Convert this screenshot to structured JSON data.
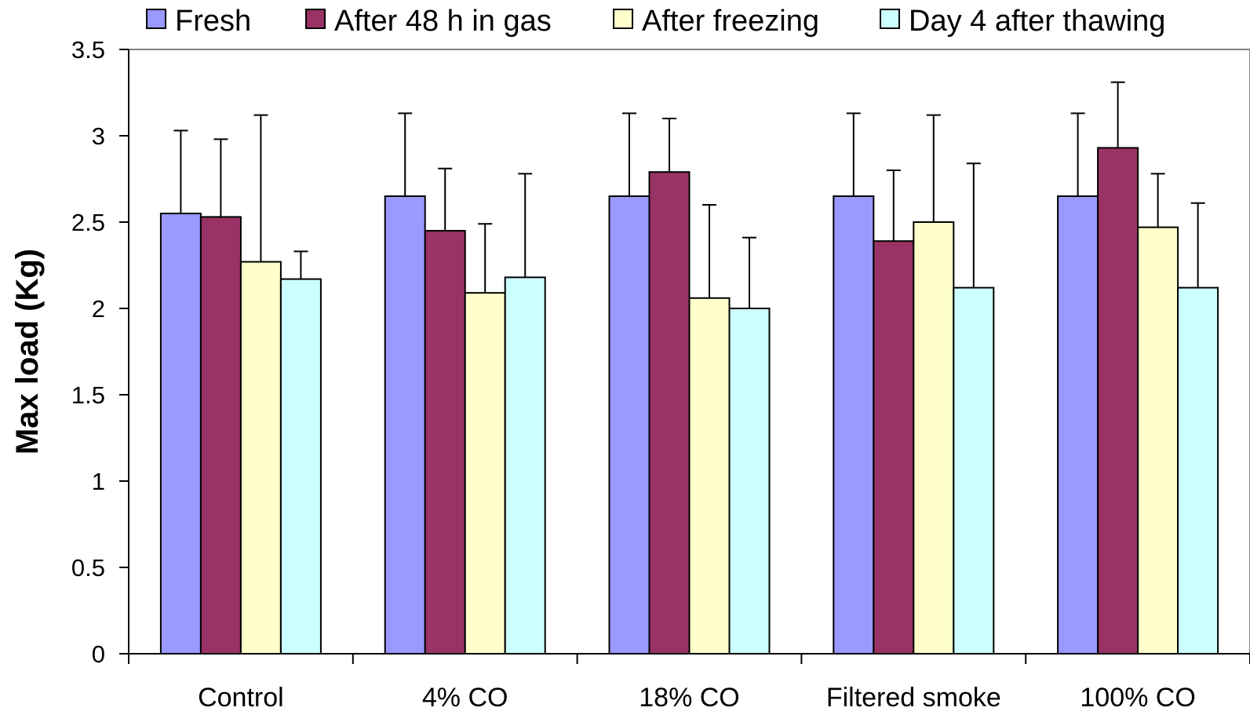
{
  "chart_data": {
    "type": "bar",
    "title": "",
    "xlabel": "",
    "ylabel": "Max load (Kg)",
    "ylim": [
      0,
      3.5
    ],
    "yticks": [
      0,
      0.5,
      1,
      1.5,
      2,
      2.5,
      3,
      3.5
    ],
    "ytick_labels": [
      "0",
      "0.5",
      "1",
      "1.5",
      "2",
      "2.5",
      "3",
      "3.5"
    ],
    "grid": false,
    "legend_position": "top",
    "categories": [
      "Control",
      "4% CO",
      "18% CO",
      "Filtered smoke",
      "100% CO"
    ],
    "series": [
      {
        "name": "Fresh",
        "color": "#9999ff",
        "values": [
          2.55,
          2.65,
          2.65,
          2.65,
          2.65
        ],
        "error_upper": [
          3.03,
          3.13,
          3.13,
          3.13,
          3.13
        ]
      },
      {
        "name": "After 48 h in gas",
        "color": "#993366",
        "values": [
          2.53,
          2.45,
          2.79,
          2.39,
          2.93
        ],
        "error_upper": [
          2.98,
          2.81,
          3.1,
          2.8,
          3.31
        ]
      },
      {
        "name": "After freezing",
        "color": "#ffffcc",
        "values": [
          2.27,
          2.09,
          2.06,
          2.5,
          2.47
        ],
        "error_upper": [
          3.12,
          2.49,
          2.6,
          3.12,
          2.78
        ]
      },
      {
        "name": "Day 4 after thawing",
        "color": "#ccffff",
        "values": [
          2.17,
          2.18,
          2.0,
          2.12,
          2.12
        ],
        "error_upper": [
          2.33,
          2.78,
          2.41,
          2.84,
          2.61
        ]
      }
    ]
  }
}
